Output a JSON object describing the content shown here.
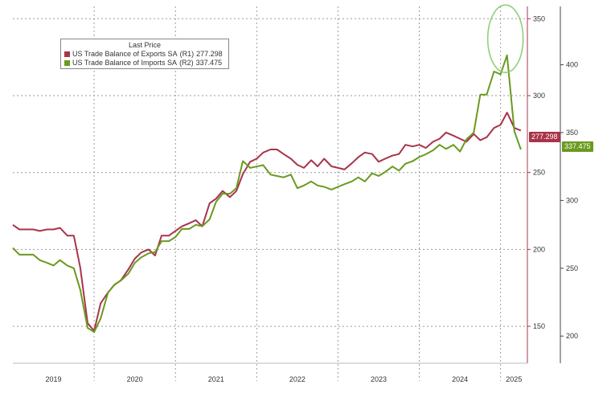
{
  "colors": {
    "exports": "#a8344a",
    "imports": "#6a9a1f",
    "highlight_circle": "#8ed07a",
    "grid": "#9a9a9a",
    "axis_right1": "#a8344a",
    "axis_right2": "#444444"
  },
  "legend": {
    "title": "Last Price",
    "items": [
      {
        "label": "US Trade Balance of Exports SA",
        "axis": "(R1)",
        "value": "277.298",
        "color": "#a8344a"
      },
      {
        "label": "US Trade Balance of Imports SA",
        "axis": "(R2)",
        "value": "337.475",
        "color": "#6a9a1f"
      }
    ]
  },
  "last_value_tags": {
    "exports": "277.298",
    "imports": "337.475"
  },
  "chart_data": {
    "type": "line",
    "x_labels": [
      "2019",
      "2020",
      "2021",
      "2022",
      "2023",
      "2024",
      "2025"
    ],
    "x_range": [
      2019.0,
      2025.33
    ],
    "y1": {
      "label": "",
      "ticks": [
        150,
        200,
        250,
        300,
        350
      ],
      "ylim": [
        126,
        358
      ]
    },
    "y2": {
      "label": "",
      "ticks": [
        200,
        250,
        300,
        350,
        400
      ],
      "ylim": [
        180,
        443
      ]
    },
    "grid": true,
    "highlight": {
      "x": 2025.06,
      "y_axis": "R1",
      "y": 337
    },
    "series": [
      {
        "name": "US Trade Balance of Exports SA",
        "axis": "R1",
        "x": [
          2019.0,
          2019.08,
          2019.17,
          2019.25,
          2019.33,
          2019.42,
          2019.5,
          2019.58,
          2019.67,
          2019.75,
          2019.83,
          2019.92,
          2020.0,
          2020.08,
          2020.17,
          2020.25,
          2020.33,
          2020.42,
          2020.5,
          2020.58,
          2020.67,
          2020.75,
          2020.83,
          2020.92,
          2021.0,
          2021.08,
          2021.17,
          2021.25,
          2021.33,
          2021.42,
          2021.5,
          2021.58,
          2021.67,
          2021.75,
          2021.83,
          2021.92,
          2022.0,
          2022.08,
          2022.17,
          2022.25,
          2022.33,
          2022.42,
          2022.5,
          2022.58,
          2022.67,
          2022.75,
          2022.83,
          2022.92,
          2023.0,
          2023.08,
          2023.17,
          2023.25,
          2023.33,
          2023.42,
          2023.5,
          2023.58,
          2023.67,
          2023.75,
          2023.83,
          2023.92,
          2024.0,
          2024.08,
          2024.17,
          2024.25,
          2024.33,
          2024.42,
          2024.5,
          2024.58,
          2024.67,
          2024.75,
          2024.83,
          2024.92,
          2025.0,
          2025.08,
          2025.17,
          2025.25
        ],
        "values": [
          216,
          213,
          213,
          213,
          212,
          213,
          213,
          214,
          209,
          209,
          188,
          152,
          147,
          165,
          172,
          177,
          180,
          187,
          194,
          198,
          200,
          196,
          209,
          209,
          212,
          215,
          217,
          219,
          215,
          230,
          233,
          238,
          234,
          238,
          249,
          257,
          259,
          263,
          265,
          265,
          262,
          259,
          255,
          253,
          258,
          254,
          259,
          254,
          253,
          252,
          256,
          260,
          263,
          262,
          257,
          259,
          261,
          262,
          268,
          267,
          268,
          266,
          270,
          272,
          276,
          274,
          272,
          270,
          275,
          271,
          273,
          279,
          281,
          289,
          279,
          277.298
        ]
      },
      {
        "name": "US Trade Balance of Imports SA",
        "axis": "R2",
        "x": [
          2019.0,
          2019.08,
          2019.17,
          2019.25,
          2019.33,
          2019.42,
          2019.5,
          2019.58,
          2019.67,
          2019.75,
          2019.83,
          2019.92,
          2020.0,
          2020.08,
          2020.17,
          2020.25,
          2020.33,
          2020.42,
          2020.5,
          2020.58,
          2020.67,
          2020.75,
          2020.83,
          2020.92,
          2021.0,
          2021.08,
          2021.17,
          2021.25,
          2021.33,
          2021.42,
          2021.5,
          2021.58,
          2021.67,
          2021.75,
          2021.83,
          2021.92,
          2022.0,
          2022.08,
          2022.17,
          2022.25,
          2022.33,
          2022.42,
          2022.5,
          2022.58,
          2022.67,
          2022.75,
          2022.83,
          2022.92,
          2023.0,
          2023.08,
          2023.17,
          2023.25,
          2023.33,
          2023.42,
          2023.5,
          2023.58,
          2023.67,
          2023.75,
          2023.83,
          2023.92,
          2024.0,
          2024.08,
          2024.17,
          2024.25,
          2024.33,
          2024.42,
          2024.5,
          2024.58,
          2024.67,
          2024.75,
          2024.83,
          2024.92,
          2025.0,
          2025.08,
          2025.17,
          2025.25
        ],
        "values": [
          265,
          260,
          260,
          260,
          256,
          254,
          252,
          256,
          252,
          250,
          234,
          206,
          203,
          213,
          232,
          238,
          241,
          246,
          254,
          258,
          261,
          262,
          270,
          270,
          273,
          279,
          279,
          282,
          281,
          286,
          299,
          305,
          305,
          309,
          329,
          324,
          325,
          326,
          319,
          318,
          317,
          319,
          309,
          311,
          314,
          311,
          310,
          308,
          310,
          312,
          314,
          317,
          314,
          320,
          318,
          321,
          325,
          322,
          327,
          329,
          332,
          334,
          337,
          341,
          338,
          341,
          336,
          345,
          350,
          378,
          378,
          395,
          393,
          407,
          351,
          337.475
        ]
      }
    ]
  }
}
